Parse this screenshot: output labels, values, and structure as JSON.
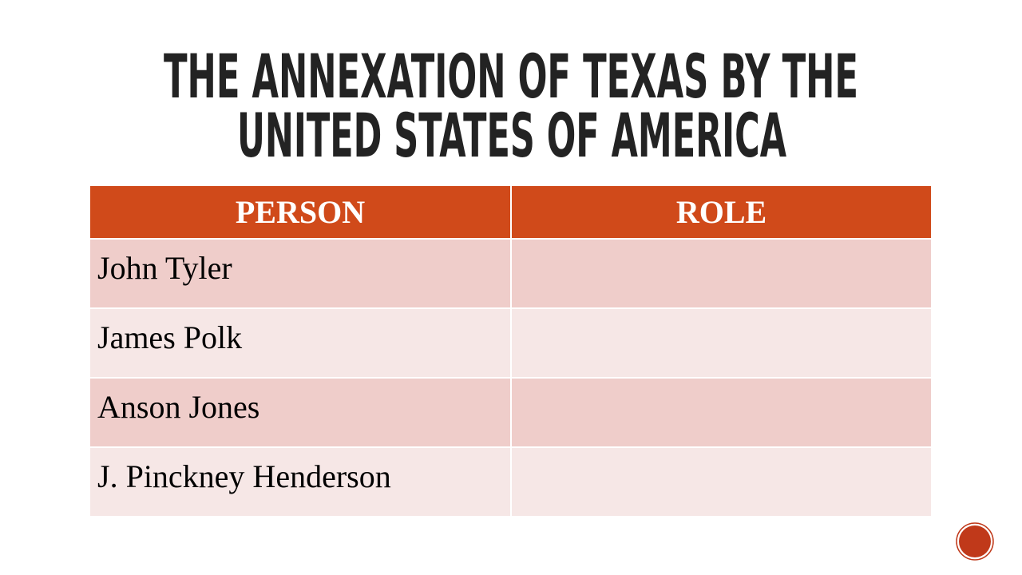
{
  "title": {
    "lines": [
      "THE ANNEXATION OF TEXAS BY THE",
      "UNITED STATES OF AMERICA"
    ]
  },
  "table": {
    "header": [
      "PERSON",
      "ROLE"
    ],
    "rows": [
      "John Tyler",
      "James Polk",
      "Anson Jones",
      "J. Pinckney Henderson"
    ]
  }
}
